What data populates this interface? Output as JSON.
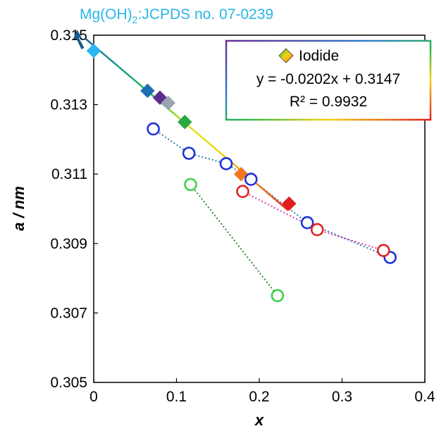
{
  "chart_data": {
    "type": "scatter",
    "xlabel": "x",
    "ylabel": "a / nm",
    "xlim": [
      0,
      0.4
    ],
    "ylim": [
      0.305,
      0.315
    ],
    "x_ticks": [
      "0",
      "0.1",
      "0.2",
      "0.3",
      "0.4"
    ],
    "y_ticks": [
      "0.305",
      "0.307",
      "0.309",
      "0.311",
      "0.313",
      "0.315"
    ],
    "annotation": {
      "text_main": "Mg(OH)",
      "text_sub": "2",
      "text_rest": ":JCPDS no. 07-0239",
      "x": -0.02,
      "y": 0.315
    },
    "legend": {
      "label": "Iodide",
      "equation": "y = -0.0202x + 0.3147",
      "r2": "R² = 0.9932",
      "placement": "top-right"
    },
    "trendline": {
      "slope": -0.0202,
      "intercept": 0.3147,
      "x_range": [
        -0.01,
        0.235
      ],
      "gradient": [
        "#1a5fa6",
        "#1d9e8c",
        "#2db84a",
        "#d6e81a",
        "#f5d20f",
        "#f08a1c",
        "#e01f1f"
      ]
    },
    "series": [
      {
        "marker": "diamond",
        "points": [
          {
            "x": 0.0,
            "y": 0.31455,
            "color": "#29b6f0"
          },
          {
            "x": 0.065,
            "y": 0.3134,
            "color": "#1f6db5"
          },
          {
            "x": 0.08,
            "y": 0.3132,
            "color": "#5b2d91"
          },
          {
            "x": 0.09,
            "y": 0.31305,
            "color": "#9aa3b1"
          },
          {
            "x": 0.11,
            "y": 0.3125,
            "color": "#2aa845"
          },
          {
            "x": 0.178,
            "y": 0.311,
            "color": "#f07820"
          },
          {
            "x": 0.236,
            "y": 0.31015,
            "color": "#e01f1f"
          }
        ]
      },
      {
        "marker": "open-circle",
        "color": "#1e33d6",
        "line_color": "#2d7fb0",
        "points": [
          {
            "x": 0.072,
            "y": 0.3123
          },
          {
            "x": 0.115,
            "y": 0.3116
          },
          {
            "x": 0.16,
            "y": 0.3113
          },
          {
            "x": 0.19,
            "y": 0.31085
          },
          {
            "x": 0.258,
            "y": 0.3096
          },
          {
            "x": 0.358,
            "y": 0.3086
          }
        ]
      },
      {
        "marker": "open-circle",
        "color": "#e32222",
        "line_color": "#d93aa6",
        "points": [
          {
            "x": 0.18,
            "y": 0.3105
          },
          {
            "x": 0.27,
            "y": 0.3094
          },
          {
            "x": 0.35,
            "y": 0.3088
          }
        ]
      },
      {
        "marker": "open-circle",
        "color": "#3fcf4a",
        "line_color": "#2e8a2e",
        "points": [
          {
            "x": 0.117,
            "y": 0.3107
          },
          {
            "x": 0.222,
            "y": 0.3075
          }
        ]
      }
    ]
  }
}
